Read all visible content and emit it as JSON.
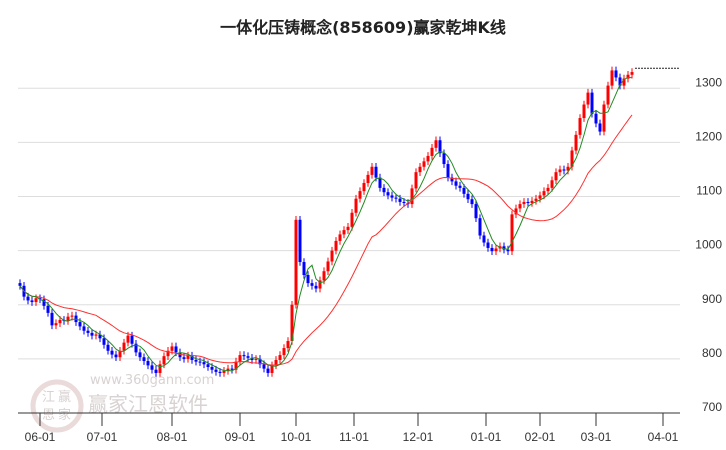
{
  "chart_data": {
    "type": "candlestick",
    "title": "一体化压铸概念(858609)赢家乾坤K线",
    "ylim": [
      700,
      1380
    ],
    "y_ticks": [
      700,
      800,
      900,
      1000,
      1100,
      1200,
      1300
    ],
    "x_ticks": [
      {
        "label": "06-01",
        "index": 5
      },
      {
        "label": "07-01",
        "index": 20.5
      },
      {
        "label": "08-01",
        "index": 38
      },
      {
        "label": "09-01",
        "index": 55
      },
      {
        "label": "10-01",
        "index": 69
      },
      {
        "label": "11-01",
        "index": 83.5
      },
      {
        "label": "12-01",
        "index": 99.5
      },
      {
        "label": "01-01",
        "index": 116.5
      },
      {
        "label": "02-01",
        "index": 130
      },
      {
        "label": "03-01",
        "index": 144
      },
      {
        "label": "04-01",
        "index": 160.75
      }
    ],
    "total_slots": 166,
    "open_first": 940,
    "wick": 7,
    "close": [
      935,
      915,
      908,
      905,
      912,
      910,
      898,
      885,
      862,
      866,
      872,
      870,
      878,
      880,
      868,
      860,
      852,
      848,
      843,
      845,
      838,
      826,
      815,
      808,
      803,
      815,
      830,
      843,
      828,
      812,
      803,
      796,
      788,
      780,
      774,
      790,
      805,
      815,
      823,
      812,
      803,
      800,
      806,
      798,
      795,
      794,
      790,
      785,
      780,
      776,
      774,
      778,
      782,
      780,
      795,
      807,
      805,
      802,
      798,
      800,
      790,
      782,
      774,
      788,
      798,
      807,
      820,
      833,
      900,
      1057,
      979,
      955,
      940,
      935,
      930,
      945,
      962,
      980,
      1000,
      1018,
      1030,
      1038,
      1044,
      1070,
      1096,
      1110,
      1125,
      1140,
      1155,
      1135,
      1116,
      1108,
      1102,
      1098,
      1096,
      1090,
      1088,
      1086,
      1115,
      1145,
      1155,
      1165,
      1175,
      1190,
      1204,
      1180,
      1160,
      1135,
      1128,
      1120,
      1116,
      1105,
      1095,
      1086,
      1060,
      1028,
      1015,
      1005,
      999,
      1004,
      1008,
      1002,
      999,
      1067,
      1078,
      1086,
      1090,
      1088,
      1092,
      1096,
      1102,
      1110,
      1116,
      1130,
      1145,
      1150,
      1148,
      1155,
      1185,
      1214,
      1245,
      1270,
      1292,
      1253,
      1235,
      1220,
      1270,
      1305,
      1333,
      1320,
      1305,
      1318,
      1325,
      1330
    ],
    "current_price_line": 1337,
    "ma_short_period": 5,
    "ma_long_period": 20,
    "colors": {
      "up": "#ff0000",
      "down": "#0000ff",
      "ma_short": "#228b22",
      "ma_long": "#ff3030",
      "grid": "#dddddd"
    }
  },
  "watermark": {
    "brand": "赢家江恩软件",
    "url": "www.360gann.com",
    "seal": [
      "江",
      "赢",
      "恩",
      "家"
    ]
  }
}
